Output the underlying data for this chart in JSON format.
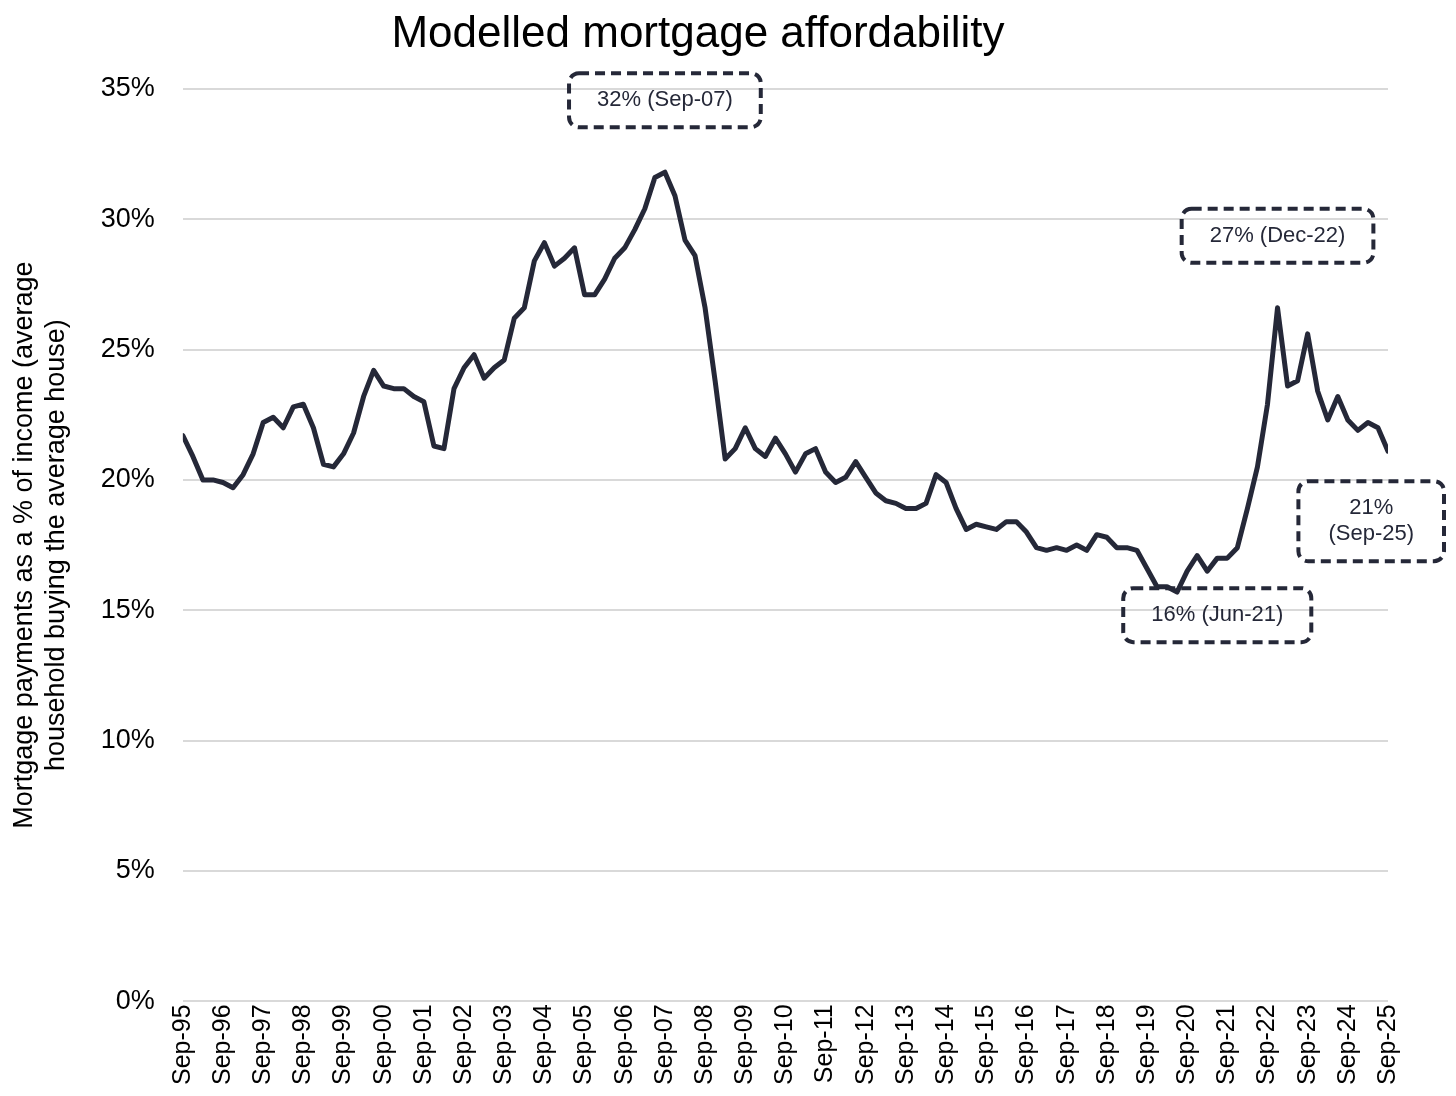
{
  "chart_data": {
    "type": "line",
    "title": "Modelled mortgage affordability",
    "ylabel": "Mortgage payments as a % of income (average household buying the average house)",
    "x": [
      "1995-09",
      "1995-12",
      "1996-03",
      "1996-06",
      "1996-09",
      "1996-12",
      "1997-03",
      "1997-06",
      "1997-09",
      "1997-12",
      "1998-03",
      "1998-06",
      "1998-09",
      "1998-12",
      "1999-03",
      "1999-06",
      "1999-09",
      "1999-12",
      "2000-03",
      "2000-06",
      "2000-09",
      "2000-12",
      "2001-03",
      "2001-06",
      "2001-09",
      "2001-12",
      "2002-03",
      "2002-06",
      "2002-09",
      "2002-12",
      "2003-03",
      "2003-06",
      "2003-09",
      "2003-12",
      "2004-03",
      "2004-06",
      "2004-09",
      "2004-12",
      "2005-03",
      "2005-06",
      "2005-09",
      "2005-12",
      "2006-03",
      "2006-06",
      "2006-09",
      "2006-12",
      "2007-03",
      "2007-06",
      "2007-09",
      "2007-12",
      "2008-03",
      "2008-06",
      "2008-09",
      "2008-12",
      "2009-03",
      "2009-06",
      "2009-09",
      "2009-12",
      "2010-03",
      "2010-06",
      "2010-09",
      "2010-12",
      "2011-03",
      "2011-06",
      "2011-09",
      "2011-12",
      "2012-03",
      "2012-06",
      "2012-09",
      "2012-12",
      "2013-03",
      "2013-06",
      "2013-09",
      "2013-12",
      "2014-03",
      "2014-06",
      "2014-09",
      "2014-12",
      "2015-03",
      "2015-06",
      "2015-09",
      "2015-12",
      "2016-03",
      "2016-06",
      "2016-09",
      "2016-12",
      "2017-03",
      "2017-06",
      "2017-09",
      "2017-12",
      "2018-03",
      "2018-06",
      "2018-09",
      "2018-12",
      "2019-03",
      "2019-06",
      "2019-09",
      "2019-12",
      "2020-03",
      "2020-06",
      "2020-09",
      "2020-12",
      "2021-03",
      "2021-06",
      "2021-09",
      "2021-12",
      "2022-03",
      "2022-06",
      "2022-09",
      "2022-12",
      "2023-03",
      "2023-06",
      "2023-09",
      "2023-12",
      "2024-03",
      "2024-06",
      "2024-09",
      "2024-12",
      "2025-03",
      "2025-06",
      "2025-09"
    ],
    "series": [
      {
        "color": "#252838",
        "values": [
          21.7,
          20.9,
          20.0,
          20.0,
          19.9,
          19.7,
          20.2,
          21.0,
          22.2,
          22.4,
          22.0,
          22.8,
          22.9,
          22.0,
          20.6,
          20.5,
          21.0,
          21.8,
          23.2,
          24.2,
          23.6,
          23.5,
          23.5,
          23.2,
          23.0,
          21.3,
          21.2,
          23.5,
          24.3,
          24.8,
          23.9,
          24.3,
          24.6,
          26.2,
          26.6,
          28.4,
          29.1,
          28.2,
          28.5,
          28.9,
          27.1,
          27.1,
          27.7,
          28.5,
          28.9,
          29.6,
          30.4,
          31.6,
          31.8,
          30.9,
          29.2,
          28.6,
          26.6,
          23.8,
          20.8,
          21.2,
          22.0,
          21.2,
          20.9,
          21.6,
          21.0,
          20.3,
          21.0,
          21.2,
          20.3,
          19.9,
          20.1,
          20.7,
          20.1,
          19.5,
          19.2,
          19.1,
          18.9,
          18.9,
          19.1,
          20.2,
          19.9,
          18.9,
          18.1,
          18.3,
          18.2,
          18.1,
          18.4,
          18.4,
          18.0,
          17.4,
          17.3,
          17.4,
          17.3,
          17.5,
          17.3,
          17.9,
          17.8,
          17.4,
          17.4,
          17.3,
          16.6,
          15.9,
          15.9,
          15.7,
          16.5,
          17.1,
          16.5,
          17.0,
          17.0,
          17.4,
          18.9,
          20.5,
          22.9,
          26.6,
          23.6,
          23.8,
          25.6,
          23.4,
          22.3,
          23.2,
          22.3,
          21.9,
          22.2,
          22.0,
          21.1
        ]
      }
    ],
    "xlim": [
      "1995-09",
      "2025-09"
    ],
    "xticks": [
      {
        "value": "1995-09",
        "label": "Sep-95"
      },
      {
        "value": "1996-09",
        "label": "Sep-96"
      },
      {
        "value": "1997-09",
        "label": "Sep-97"
      },
      {
        "value": "1998-09",
        "label": "Sep-98"
      },
      {
        "value": "1999-09",
        "label": "Sep-99"
      },
      {
        "value": "2000-09",
        "label": "Sep-00"
      },
      {
        "value": "2001-09",
        "label": "Sep-01"
      },
      {
        "value": "2002-09",
        "label": "Sep-02"
      },
      {
        "value": "2003-09",
        "label": "Sep-03"
      },
      {
        "value": "2004-09",
        "label": "Sep-04"
      },
      {
        "value": "2005-09",
        "label": "Sep-05"
      },
      {
        "value": "2006-09",
        "label": "Sep-06"
      },
      {
        "value": "2007-09",
        "label": "Sep-07"
      },
      {
        "value": "2008-09",
        "label": "Sep-08"
      },
      {
        "value": "2009-09",
        "label": "Sep-09"
      },
      {
        "value": "2010-09",
        "label": "Sep-10"
      },
      {
        "value": "2011-09",
        "label": "Sep-11"
      },
      {
        "value": "2012-09",
        "label": "Sep-12"
      },
      {
        "value": "2013-09",
        "label": "Sep-13"
      },
      {
        "value": "2014-09",
        "label": "Sep-14"
      },
      {
        "value": "2015-09",
        "label": "Sep-15"
      },
      {
        "value": "2016-09",
        "label": "Sep-16"
      },
      {
        "value": "2017-09",
        "label": "Sep-17"
      },
      {
        "value": "2018-09",
        "label": "Sep-18"
      },
      {
        "value": "2019-09",
        "label": "Sep-19"
      },
      {
        "value": "2020-09",
        "label": "Sep-20"
      },
      {
        "value": "2021-09",
        "label": "Sep-21"
      },
      {
        "value": "2022-09",
        "label": "Sep-22"
      },
      {
        "value": "2023-09",
        "label": "Sep-23"
      },
      {
        "value": "2024-09",
        "label": "Sep-24"
      },
      {
        "value": "2025-09",
        "label": "Sep-25"
      }
    ],
    "ylim": [
      0,
      35
    ],
    "yticks": [
      {
        "value": 0,
        "label": "0%"
      },
      {
        "value": 5,
        "label": "5%"
      },
      {
        "value": 10,
        "label": "10%"
      },
      {
        "value": 15,
        "label": "15%"
      },
      {
        "value": 20,
        "label": "20%"
      },
      {
        "value": 25,
        "label": "25%"
      },
      {
        "value": 30,
        "label": "30%"
      },
      {
        "value": 35,
        "label": "35%"
      }
    ],
    "grid": "y",
    "legend": false,
    "marker": "none",
    "line_style": "solid",
    "annotations": [
      {
        "text": "32% (Sep-07)",
        "x": "2007-09",
        "y": 31.8
      },
      {
        "text": "27% (Dec-22)",
        "x": "2022-12",
        "y": 26.6
      },
      {
        "text": "16% (Jun-21)",
        "x": "2021-06",
        "y": 17.0
      },
      {
        "text": "21% (Sep-25)",
        "x": "2025-09",
        "y": 21.1
      }
    ]
  }
}
